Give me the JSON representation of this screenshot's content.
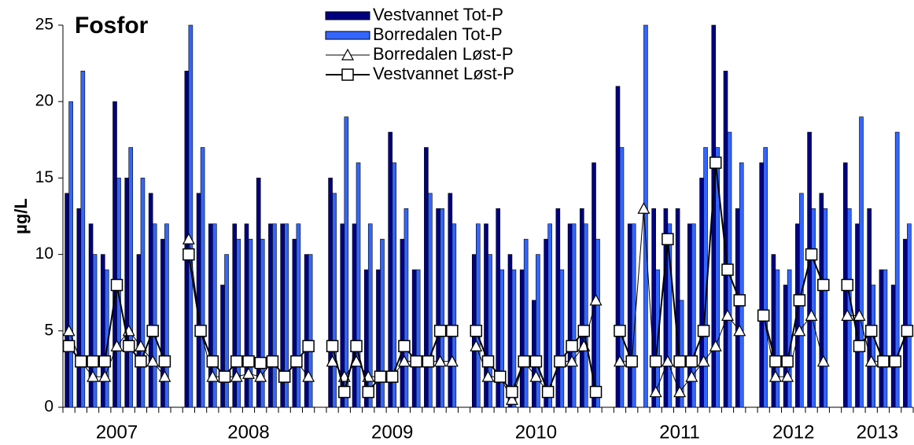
{
  "chart_data": {
    "type": "bar_line",
    "title": "Fosfor",
    "ylabel": "µg/L",
    "categories": [
      "2007",
      "2007",
      "2007",
      "2007",
      "2007",
      "2007",
      "2007",
      "2007",
      "2007",
      null,
      "2008",
      "2008",
      "2008",
      "2008",
      "2008",
      "2008",
      "2008",
      "2008",
      "2008",
      "2008",
      "2008",
      null,
      "2009",
      "2009",
      "2009",
      "2009",
      "2009",
      "2009",
      "2009",
      "2009",
      "2009",
      "2009",
      "2009",
      null,
      "2010",
      "2010",
      "2010",
      "2010",
      "2010",
      "2010",
      "2010",
      "2010",
      "2010",
      "2010",
      "2010",
      null,
      "2011",
      "2011",
      "2011",
      "2011",
      "2011",
      "2011",
      "2011",
      "2011",
      "2011",
      "2011",
      "2011",
      null,
      "2012",
      "2012",
      "2012",
      "2012",
      "2012",
      "2012",
      null,
      "2013",
      "2013",
      "2013",
      "2013",
      "2013",
      "2013"
    ],
    "series": [
      {
        "name": "Vestvannet Tot-P",
        "kind": "bar",
        "color": "#000080",
        "values": [
          14,
          13,
          12,
          10,
          20,
          15,
          10,
          14,
          11,
          null,
          22,
          14,
          12,
          8,
          12,
          12,
          15,
          12,
          12,
          11,
          10,
          null,
          15,
          12,
          12,
          9,
          9,
          18,
          11,
          9,
          17,
          13,
          14,
          null,
          10,
          12,
          13,
          10,
          9,
          7,
          11,
          13,
          12,
          13,
          16,
          null,
          21,
          12,
          null,
          13,
          13,
          13,
          12,
          15,
          25,
          22,
          13,
          null,
          16,
          10,
          8,
          12,
          18,
          14,
          null,
          16,
          12,
          13,
          9,
          8,
          11
        ]
      },
      {
        "name": "Borredalen Tot-P",
        "kind": "bar",
        "color": "#3366ff",
        "values": [
          20,
          22,
          10,
          9,
          15,
          17,
          15,
          12,
          12,
          null,
          25,
          17,
          12,
          10,
          11,
          11,
          11,
          12,
          12,
          12,
          10,
          null,
          14,
          19,
          16,
          12,
          11,
          16,
          13,
          9,
          14,
          13,
          12,
          null,
          12,
          10,
          9,
          9,
          11,
          10,
          12,
          9,
          12,
          12,
          11,
          null,
          17,
          12,
          25,
          9,
          12,
          7,
          12,
          17,
          17,
          18,
          16,
          null,
          17,
          9,
          9,
          14,
          13,
          13,
          null,
          13,
          19,
          8,
          9,
          18,
          12
        ]
      },
      {
        "name": "Borredalen Løst-P",
        "kind": "line",
        "marker": "triangle",
        "color": "#000000",
        "values": [
          5,
          3,
          2,
          2,
          4,
          5,
          4,
          3,
          2,
          null,
          11,
          5,
          2,
          2,
          2,
          2.2,
          2,
          3,
          2,
          3,
          2,
          null,
          3,
          2,
          3,
          2,
          2,
          2,
          3,
          3,
          3,
          3,
          3,
          null,
          4,
          2,
          2,
          0.5,
          3,
          2,
          1,
          3,
          3,
          4,
          7,
          null,
          3,
          3,
          13,
          1,
          3,
          1,
          2,
          3,
          4,
          6,
          5,
          null,
          6,
          2,
          2,
          5,
          6,
          3,
          null,
          6,
          6,
          3,
          3,
          3,
          5
        ]
      },
      {
        "name": "Vestvannet Løst-P",
        "kind": "line",
        "marker": "square",
        "color": "#000000",
        "values": [
          4,
          3,
          3,
          3,
          8,
          4,
          3,
          5,
          3,
          null,
          10,
          5,
          3,
          2,
          3,
          3,
          2.9,
          3,
          2,
          3,
          4,
          null,
          4,
          1,
          4,
          1,
          2,
          2,
          4,
          3,
          3,
          5,
          5,
          null,
          5,
          3,
          2,
          1,
          3,
          3,
          1,
          3,
          4,
          5,
          1,
          null,
          5,
          3,
          null,
          3,
          11,
          3,
          3,
          5,
          16,
          9,
          7,
          null,
          6,
          3,
          3,
          7,
          10,
          8,
          null,
          8,
          4,
          5,
          3,
          3,
          5
        ]
      }
    ],
    "ylim": [
      0,
      25
    ],
    "yticks": [
      0,
      5,
      10,
      15,
      20,
      25
    ],
    "grid": false
  }
}
